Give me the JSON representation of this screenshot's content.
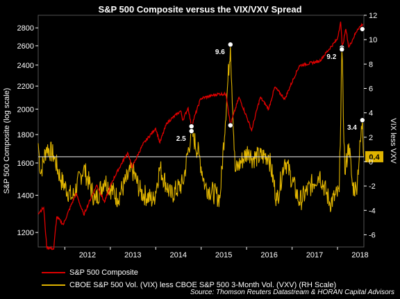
{
  "chart_data": {
    "type": "line",
    "title": "S&P 500 Composite versus the VIX/VXV Spread",
    "ylabel": "S&P 500 Composite (log scale)",
    "y2label": "VIX less VXV",
    "y_scale": "log",
    "ylim": [
      1130,
      2950
    ],
    "y2lim": [
      -7,
      12
    ],
    "yticks": [
      1200,
      1400,
      1600,
      1800,
      2000,
      2200,
      2400,
      2600,
      2800
    ],
    "y2ticks": [
      -6,
      -4,
      -2,
      0,
      2,
      4,
      6,
      8,
      10,
      12
    ],
    "xlim": [
      "2011-06-01",
      "2018-08-01"
    ],
    "xticks": [
      "2012",
      "2013",
      "2014",
      "2015",
      "2016",
      "2017",
      "2018"
    ],
    "reference_line": {
      "axis": "y2",
      "value": 0.4,
      "label": "0.4"
    },
    "series": [
      {
        "name": "S&P 500 Composite",
        "color": "#e00000",
        "axis": "left",
        "points": [
          [
            "2011-06-01",
            1300
          ],
          [
            "2011-07-15",
            1330
          ],
          [
            "2011-08-08",
            1130
          ],
          [
            "2011-10-04",
            1120
          ],
          [
            "2011-10-28",
            1280
          ],
          [
            "2011-12-20",
            1240
          ],
          [
            "2012-04-01",
            1410
          ],
          [
            "2012-06-01",
            1290
          ],
          [
            "2012-09-14",
            1460
          ],
          [
            "2012-11-15",
            1360
          ],
          [
            "2013-01-15",
            1480
          ],
          [
            "2013-05-20",
            1670
          ],
          [
            "2013-06-24",
            1570
          ],
          [
            "2013-09-18",
            1725
          ],
          [
            "2013-12-31",
            1848
          ],
          [
            "2014-02-03",
            1740
          ],
          [
            "2014-04-01",
            1890
          ],
          [
            "2014-07-20",
            1985
          ],
          [
            "2014-08-07",
            1910
          ],
          [
            "2014-09-18",
            2011
          ],
          [
            "2014-10-15",
            1862
          ],
          [
            "2014-12-29",
            2090
          ],
          [
            "2015-05-20",
            2130
          ],
          [
            "2015-07-20",
            2128
          ],
          [
            "2015-08-24",
            1870
          ],
          [
            "2015-11-01",
            2100
          ],
          [
            "2016-02-11",
            1830
          ],
          [
            "2016-04-20",
            2100
          ],
          [
            "2016-06-27",
            2000
          ],
          [
            "2016-08-15",
            2190
          ],
          [
            "2016-11-04",
            2085
          ],
          [
            "2017-03-01",
            2395
          ],
          [
            "2017-08-10",
            2440
          ],
          [
            "2017-12-31",
            2673
          ],
          [
            "2018-01-26",
            2872
          ],
          [
            "2018-02-08",
            2580
          ],
          [
            "2018-03-09",
            2786
          ],
          [
            "2018-04-02",
            2582
          ],
          [
            "2018-06-12",
            2786
          ],
          [
            "2018-07-25",
            2846
          ]
        ]
      },
      {
        "name": "CBOE S&P 500 Vol. (VIX) less CBOE S&P 500 3-Month Vol. (VXV) (RH Scale)",
        "color": "#e0b400",
        "axis": "right",
        "points": [
          [
            "2011-06-01",
            1.5
          ],
          [
            "2011-06-20",
            -1.0
          ],
          [
            "2011-08-08",
            1.2
          ],
          [
            "2011-10-04",
            0.5
          ],
          [
            "2011-12-01",
            -1.5
          ],
          [
            "2012-03-01",
            -3.0
          ],
          [
            "2012-06-01",
            -0.5
          ],
          [
            "2012-09-01",
            -3.2
          ],
          [
            "2012-11-15",
            -1.5
          ],
          [
            "2013-03-01",
            -3.0
          ],
          [
            "2013-06-24",
            -0.6
          ],
          [
            "2013-09-01",
            -2.5
          ],
          [
            "2013-12-15",
            -3.2
          ],
          [
            "2014-02-03",
            -0.5
          ],
          [
            "2014-05-01",
            -2.8
          ],
          [
            "2014-08-07",
            -1.8
          ],
          [
            "2014-10-15",
            2.5
          ],
          [
            "2014-12-16",
            0.5
          ],
          [
            "2015-02-01",
            -2.0
          ],
          [
            "2015-06-01",
            -3.0
          ],
          [
            "2015-08-24",
            9.6
          ],
          [
            "2015-10-01",
            -0.8
          ],
          [
            "2016-01-20",
            1.0
          ],
          [
            "2016-02-11",
            0.3
          ],
          [
            "2016-06-27",
            0.5
          ],
          [
            "2016-09-01",
            -3.2
          ],
          [
            "2016-11-04",
            0.2
          ],
          [
            "2017-03-01",
            -3.3
          ],
          [
            "2017-08-10",
            -1.0
          ],
          [
            "2017-11-01",
            -3.4
          ],
          [
            "2018-01-15",
            -2.5
          ],
          [
            "2018-02-05",
            9.2
          ],
          [
            "2018-03-01",
            -1.0
          ],
          [
            "2018-04-02",
            1.5
          ],
          [
            "2018-05-01",
            -2.0
          ],
          [
            "2018-06-01",
            -2.3
          ],
          [
            "2018-07-20",
            3.4
          ],
          [
            "2018-07-31",
            0.4
          ]
        ]
      }
    ],
    "annotations": [
      {
        "label": "2.5",
        "date": "2014-10-15",
        "spx": 1862,
        "vix_less_vxv": 2.5
      },
      {
        "label": "9.6",
        "date": "2015-08-24",
        "spx": 1870,
        "vix_less_vxv": 9.6
      },
      {
        "label": "9.2",
        "date": "2018-02-05",
        "spx": 2580,
        "vix_less_vxv": 9.2
      },
      {
        "label": "3.4",
        "date": "2018-07-20",
        "spx": 2786,
        "vix_less_vxv": 3.4
      }
    ],
    "legend": "bottom"
  },
  "source": "Source: Thomson Reuters Datastream & HORAN Capital Advisors"
}
